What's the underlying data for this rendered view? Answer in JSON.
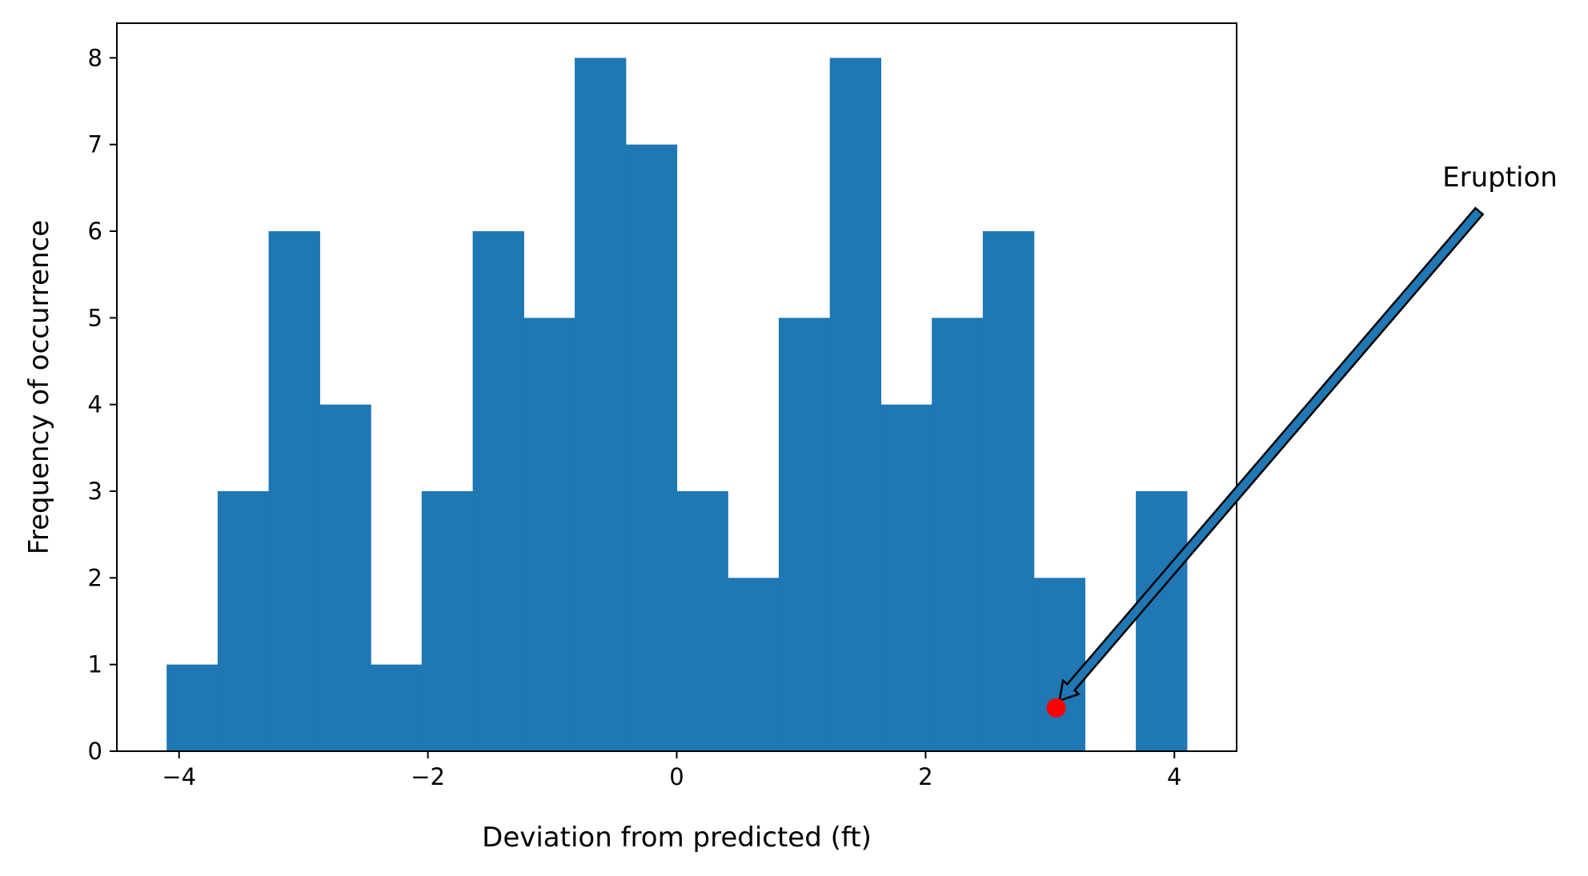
{
  "chart_data": {
    "type": "bar",
    "subtype": "histogram",
    "bin_edges": [
      -4.1,
      -3.69,
      -3.28,
      -2.87,
      -2.46,
      -2.05,
      -1.64,
      -1.23,
      -0.82,
      -0.41,
      0.0,
      0.41,
      0.82,
      1.23,
      1.64,
      2.05,
      2.46,
      2.87,
      3.28,
      3.69,
      4.1
    ],
    "values": [
      1,
      3,
      6,
      4,
      1,
      3,
      6,
      5,
      8,
      7,
      3,
      2,
      5,
      8,
      4,
      5,
      6,
      2,
      0,
      3
    ],
    "xlabel": "Deviation from predicted (ft)",
    "ylabel": "Frequency of occurrence",
    "xlim": [
      -4.5,
      4.5
    ],
    "ylim": [
      0,
      8.4
    ],
    "xticks": [
      -4,
      -2,
      0,
      2,
      4
    ],
    "xtick_labels": [
      "−4",
      "−2",
      "0",
      "2",
      "4"
    ],
    "yticks": [
      0,
      1,
      2,
      3,
      4,
      5,
      6,
      7,
      8
    ],
    "ytick_labels": [
      "0",
      "1",
      "2",
      "3",
      "4",
      "5",
      "6",
      "7",
      "8"
    ],
    "grid": false,
    "bar_color": "#1f77b4",
    "annotation": {
      "text": "Eruption",
      "point": {
        "x": 3.05,
        "y": 0.5
      },
      "marker_color": "#ff0000",
      "arrow_color": "#1f77b4"
    }
  }
}
